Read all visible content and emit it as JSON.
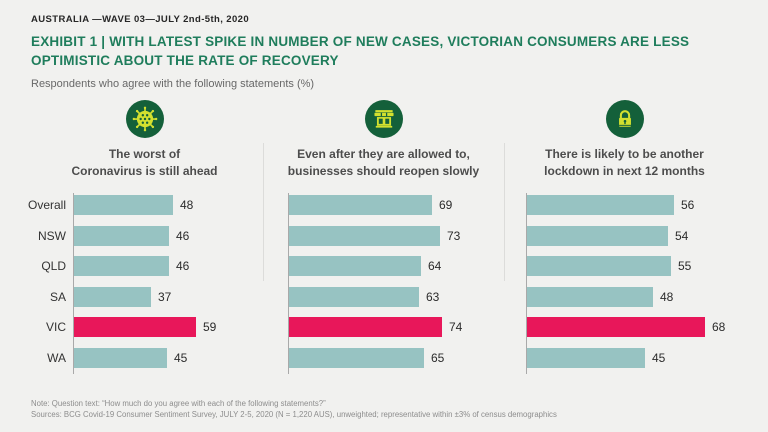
{
  "header": {
    "kicker": "AUSTRALIA —WAVE 03—JULY 2nd-5th, 2020",
    "title_line1": "EXHIBIT 1 | WITH LATEST SPIKE IN NUMBER OF NEW CASES, VICTORIAN CONSUMERS ARE LESS",
    "title_line2": "OPTIMISTIC ABOUT THE RATE OF RECOVERY",
    "title_full": "EXHIBIT 1 | WITH LATEST SPIKE IN NUMBER OF NEW CASES, VICTORIAN CONSUMERS ARE LESS OPTIMISTIC ABOUT THE RATE OF RECOVERY",
    "subtitle": "Respondents who agree with the following statements (%)"
  },
  "colors": {
    "background": "#f1f1ef",
    "accent_green": "#1f7d5c",
    "bar_teal": "#97c3c2",
    "bar_highlight_pink": "#e8175a",
    "icon_circle_green": "#14603a",
    "icon_glyph_yellow_green": "#d3e02f",
    "divider_gray": "#dcdcda",
    "axis_gray": "#a9a9a9"
  },
  "chart_data": {
    "type": "bar",
    "orientation": "horizontal",
    "unit": "%",
    "categories": [
      "Overall",
      "NSW",
      "QLD",
      "SA",
      "VIC",
      "WA"
    ],
    "highlight_category": "VIC",
    "series": [
      {
        "name": "The worst of Coronavirus is still ahead",
        "statement_line1": "The worst of",
        "statement_line2": "Coronavirus is still ahead",
        "icon": "virus-icon",
        "values": [
          48,
          46,
          46,
          37,
          59,
          45
        ]
      },
      {
        "name": "Even after they are allowed to, businesses should reopen slowly",
        "statement_line1": "Even after they are allowed to,",
        "statement_line2": "businesses should reopen slowly",
        "icon": "storefront-icon",
        "values": [
          69,
          73,
          64,
          63,
          74,
          65
        ]
      },
      {
        "name": "There is likely to be another lockdown in next 12 months",
        "statement_line1": "There is likely to be another",
        "statement_line2": "lockdown in next 12 months",
        "icon": "lock-icon",
        "values": [
          56,
          54,
          55,
          48,
          68,
          45
        ]
      }
    ]
  },
  "footer": {
    "note": "Note: Question text: “How much do you agree with each of the following statements?”",
    "sources": "Sources: BCG Covid-19 Consumer Sentiment Survey, JULY 2-5, 2020 (N = 1,220 AUS), unweighted; representative within ±3% of census demographics"
  }
}
